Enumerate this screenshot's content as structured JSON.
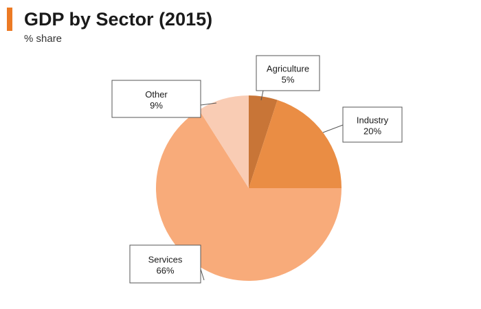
{
  "title": "GDP by Sector (2015)",
  "subtitle": "% share",
  "colors": {
    "accent": "#ec7a24"
  },
  "chart_data": {
    "type": "pie",
    "start_angle_deg": 0,
    "direction": "clockwise",
    "slices": [
      {
        "label": "Agriculture",
        "value": 5,
        "display": "5%",
        "color": "#c87537"
      },
      {
        "label": "Industry",
        "value": 20,
        "display": "20%",
        "color": "#ea8d44"
      },
      {
        "label": "Services",
        "value": 66,
        "display": "66%",
        "color": "#f8ab7a"
      },
      {
        "label": "Other",
        "value": 9,
        "display": "9%",
        "color": "#f9ccb4"
      }
    ]
  }
}
